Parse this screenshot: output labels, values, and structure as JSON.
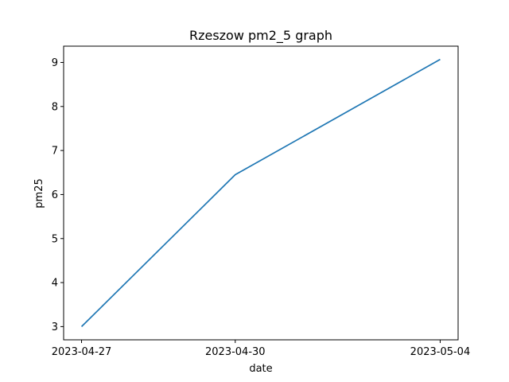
{
  "chart_data": {
    "type": "line",
    "title": "Rzeszow pm2_5 graph",
    "xlabel": "date",
    "ylabel": "pm25",
    "categories": [
      "2023-04-27",
      "2023-04-30",
      "2023-05-04"
    ],
    "series": [
      {
        "values": [
          3.0,
          6.45,
          9.07
        ],
        "color": "#1f77b4"
      }
    ],
    "yticks": [
      3,
      4,
      5,
      6,
      7,
      8,
      9
    ],
    "ylim": [
      2.7,
      9.37
    ],
    "grid": false,
    "legend": "none"
  }
}
